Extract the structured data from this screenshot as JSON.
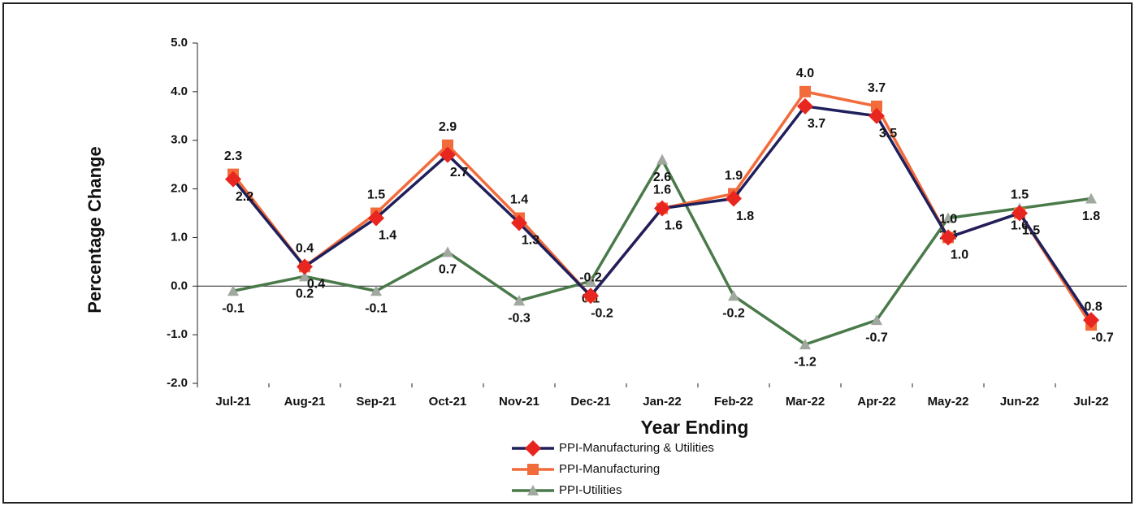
{
  "chart_data": {
    "type": "line",
    "x_label": "Year Ending",
    "y_label": "Percentage Change",
    "categories": [
      "Jul-21",
      "Aug-21",
      "Sep-21",
      "Oct-21",
      "Nov-21",
      "Dec-21",
      "Jan-22",
      "Feb-22",
      "Mar-22",
      "Apr-22",
      "May-22",
      "Jun-22",
      "Jul-22"
    ],
    "series": [
      {
        "name": "PPI-Manufacturing & Utilities",
        "color": "#1f1f5c",
        "marker_color": "#e8251f",
        "marker": "diamond",
        "values": [
          2.2,
          0.4,
          1.4,
          2.7,
          1.3,
          -0.2,
          1.6,
          1.8,
          3.7,
          3.5,
          1.0,
          1.5,
          -0.7
        ],
        "value_labels": [
          "2.2",
          "0.4",
          "1.4",
          "2.7",
          "1.3",
          "-0.2",
          "1.6",
          "1.8",
          "3.7",
          "3.5",
          "1.0",
          "1.5",
          "-0.7"
        ]
      },
      {
        "name": "PPI-Manufacturing",
        "color": "#f26b3a",
        "marker_color": "#f26b3a",
        "marker": "square",
        "values": [
          2.3,
          0.4,
          1.5,
          2.9,
          1.4,
          -0.2,
          1.6,
          1.9,
          4.0,
          3.7,
          1.0,
          1.5,
          -0.8
        ],
        "value_labels": [
          "2.3",
          "0.4",
          "1.5",
          "2.9",
          "1.4",
          "-0.2",
          "1.6",
          "1.9",
          "4.0",
          "3.7",
          "1.0",
          "1.5",
          "-0.8"
        ]
      },
      {
        "name": "PPI-Utilities",
        "color": "#4a7a4a",
        "marker_color": "#a0a8a0",
        "marker": "triangle",
        "values": [
          -0.1,
          0.2,
          -0.1,
          0.7,
          -0.3,
          0.1,
          2.6,
          -0.2,
          -1.2,
          -0.7,
          1.4,
          1.6,
          1.8
        ],
        "value_labels": [
          "-0.1",
          "0.2",
          "-0.1",
          "0.7",
          "-0.3",
          "0.1",
          "2.6",
          "-0.2",
          "-1.2",
          "-0.7",
          "1.4",
          "1.6",
          "1.8"
        ]
      }
    ],
    "ylim": [
      -2,
      5
    ],
    "yticks": [
      {
        "value": -2,
        "label": "-2.0"
      },
      {
        "value": -1,
        "label": "-1.0"
      },
      {
        "value": 0,
        "label": "0.0"
      },
      {
        "value": 1,
        "label": "1.0"
      },
      {
        "value": 2,
        "label": "2.0"
      },
      {
        "value": 3,
        "label": "3.0"
      },
      {
        "value": 4,
        "label": "4.0"
      },
      {
        "value": 5,
        "label": "5.0"
      }
    ],
    "legend": "bottom"
  }
}
